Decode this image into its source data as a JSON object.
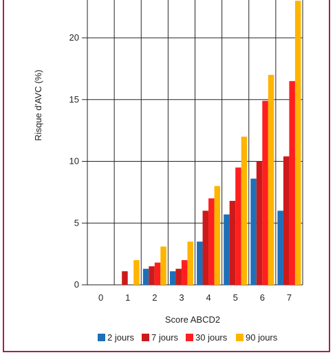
{
  "chart_data": {
    "type": "bar",
    "title": "",
    "xlabel": "Score ABCD2",
    "ylabel": "Risque d'AVC (%)",
    "ylim": [
      0,
      23
    ],
    "yticks": [
      "0",
      "5",
      "10",
      "15",
      "20"
    ],
    "categories": [
      "0",
      "1",
      "2",
      "3",
      "4",
      "5",
      "6",
      "7"
    ],
    "grid": true,
    "legend_position": "bottom",
    "series": [
      {
        "name": "2 jours",
        "color": "#1f6fb8",
        "values": [
          0,
          0,
          1.3,
          1.1,
          3.5,
          5.7,
          8.6,
          6.0
        ]
      },
      {
        "name": "7 jours",
        "color": "#cc1a1a",
        "values": [
          0,
          1.1,
          1.5,
          1.3,
          6.0,
          6.8,
          10.0,
          10.4
        ]
      },
      {
        "name": "30 jours",
        "color": "#ff1f1f",
        "values": [
          0,
          0,
          1.8,
          2.0,
          7.0,
          9.5,
          14.9,
          16.5
        ]
      },
      {
        "name": "90 jours",
        "color": "#ffb400",
        "values": [
          0,
          2.0,
          3.1,
          3.5,
          8.0,
          12.0,
          17.0,
          23.0
        ]
      }
    ]
  }
}
